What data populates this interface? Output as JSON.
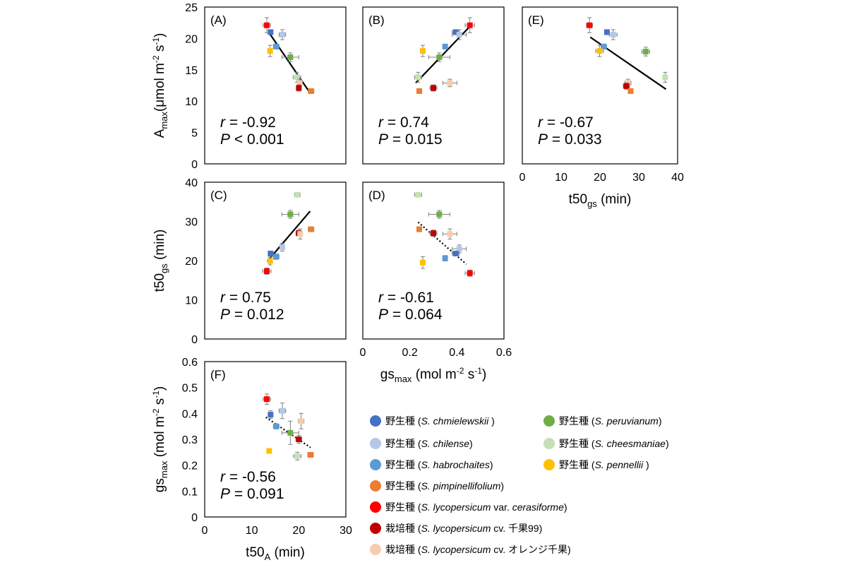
{
  "legend": {
    "entries": [
      {
        "key": "chm",
        "prefix": "野生種 (",
        "italic": "S. chmielewskii",
        "suffix": " )",
        "color": "#4472C4"
      },
      {
        "key": "chi",
        "prefix": "野生種 (",
        "italic": "S. chilense",
        "suffix": ")",
        "color": "#B4C7E7"
      },
      {
        "key": "hab",
        "prefix": "野生種 (",
        "italic": "S. habrochaites",
        "suffix": ")",
        "color": "#5B9BD5"
      },
      {
        "key": "pim",
        "prefix": "野生種 (",
        "italic": "S. pimpinellifolium",
        "suffix": ")",
        "color": "#ED7D31"
      },
      {
        "key": "cer",
        "prefix": "野生種 (",
        "italic": "S. lycopersicum",
        "suffix": " var. ",
        "italic2": "cerasiforme",
        "suffix2": ")",
        "color": "#FF0000"
      },
      {
        "key": "c99",
        "prefix": "栽培種 (",
        "italic": "S. lycopersicum",
        "suffix": " cv. 千果99)",
        "color": "#C00000"
      },
      {
        "key": "cor",
        "prefix": "栽培種 (",
        "italic": "S. lycopersicum",
        "suffix": " cv. オレンジ千果)",
        "color": "#F8CBAD"
      },
      {
        "key": "per",
        "prefix": "野生種 (",
        "italic": "S. peruvianum",
        "suffix": ")",
        "color": "#70AD47"
      },
      {
        "key": "che",
        "prefix": "野生種 (",
        "italic": "S. cheesmaniae",
        "suffix": ")",
        "color": "#C5E0B4"
      },
      {
        "key": "pen",
        "prefix": "野生種 (",
        "italic": "S. pennellii",
        "suffix": " )",
        "color": "#FFC000"
      }
    ]
  },
  "chart_data": [
    {
      "id": "A",
      "type": "scatter",
      "panel_label": "(A)",
      "ylabel": "A",
      "ylabel_sub": "max",
      "ylabel_unit": "(μmol m",
      "ylabel_sup1": "-2",
      "ylabel_mid": " s",
      "ylabel_sup2": "-1",
      "ylabel_end": ")",
      "xlim": [
        0,
        30
      ],
      "ylim": [
        0,
        25
      ],
      "yticks": [
        "0",
        "5",
        "10",
        "15",
        "20",
        "25"
      ],
      "r": "-0.92",
      "p_op": "<",
      "p": "0.001",
      "trend": {
        "style": "solid",
        "from": [
          13.6,
          21.0
        ],
        "to": [
          22.3,
          11.4
        ]
      },
      "points": [
        {
          "s": "cer",
          "x": 13.2,
          "y": 22.1,
          "xe": 0.8,
          "ye": 1.2
        },
        {
          "s": "chm",
          "x": 14.0,
          "y": 21.0,
          "xe": 0.4,
          "ye": 0.4
        },
        {
          "s": "chi",
          "x": 16.5,
          "y": 20.6,
          "xe": 0.7,
          "ye": 0.8
        },
        {
          "s": "hab",
          "x": 15.2,
          "y": 18.7,
          "xe": 0.6,
          "ye": 0.4
        },
        {
          "s": "pen",
          "x": 13.9,
          "y": 18.0,
          "xe": 0.3,
          "ye": 0.9
        },
        {
          "s": "per",
          "x": 18.2,
          "y": 17.0,
          "xe": 1.8,
          "ye": 0.7
        },
        {
          "s": "che",
          "x": 19.6,
          "y": 13.8,
          "xe": 0.8,
          "ye": 0.8
        },
        {
          "s": "cor",
          "x": 20.2,
          "y": 12.9,
          "xe": 0.5,
          "ye": 0.6
        },
        {
          "s": "c99",
          "x": 20.0,
          "y": 12.1,
          "xe": 0.5,
          "ye": 0.5
        },
        {
          "s": "pim",
          "x": 22.6,
          "y": 11.6,
          "xe": 0.6,
          "ye": 0.3
        }
      ]
    },
    {
      "id": "B",
      "type": "scatter",
      "panel_label": "(B)",
      "xlim": [
        0,
        0.6
      ],
      "ylim": [
        0,
        25
      ],
      "r": "0.74",
      "p_op": "=",
      "p": "0.015",
      "trend": {
        "style": "solid",
        "from": [
          0.225,
          12.9
        ],
        "to": [
          0.46,
          22.1
        ]
      },
      "points": [
        {
          "s": "cer",
          "x": 0.455,
          "y": 22.1,
          "xe": 0.02,
          "ye": 1.2
        },
        {
          "s": "chm",
          "x": 0.395,
          "y": 21.0,
          "xe": 0.015,
          "ye": 0.4
        },
        {
          "s": "chi",
          "x": 0.41,
          "y": 20.6,
          "xe": 0.03,
          "ye": 0.8
        },
        {
          "s": "hab",
          "x": 0.35,
          "y": 18.7,
          "xe": 0.01,
          "ye": 0.4
        },
        {
          "s": "pen",
          "x": 0.255,
          "y": 18.0,
          "xe": 0.005,
          "ye": 0.9
        },
        {
          "s": "per",
          "x": 0.325,
          "y": 17.0,
          "xe": 0.045,
          "ye": 0.7
        },
        {
          "s": "che",
          "x": 0.235,
          "y": 13.8,
          "xe": 0.015,
          "ye": 0.8
        },
        {
          "s": "cor",
          "x": 0.37,
          "y": 12.9,
          "xe": 0.03,
          "ye": 0.6
        },
        {
          "s": "c99",
          "x": 0.3,
          "y": 12.1,
          "xe": 0.015,
          "ye": 0.5
        },
        {
          "s": "pim",
          "x": 0.24,
          "y": 11.6,
          "xe": 0.005,
          "ye": 0.3
        }
      ]
    },
    {
      "id": "E",
      "type": "scatter",
      "panel_label": "(E)",
      "xlabel": "t50",
      "xlabel_sub": "gs",
      "xlabel_unit": " (min)",
      "xlim": [
        0,
        40
      ],
      "ylim": [
        0,
        25
      ],
      "xticks": [
        "0",
        "10",
        "20",
        "30",
        "40"
      ],
      "r": "-0.67",
      "p_op": "=",
      "p": "0.033",
      "trend": {
        "style": "solid",
        "from": [
          17.5,
          20.2
        ],
        "to": [
          37.0,
          11.9
        ]
      },
      "points": [
        {
          "s": "cer",
          "x": 17.3,
          "y": 22.1,
          "xe": 0.8,
          "ye": 1.2
        },
        {
          "s": "chm",
          "x": 21.8,
          "y": 21.0,
          "xe": 0.6,
          "ye": 0.4
        },
        {
          "s": "chi",
          "x": 23.4,
          "y": 20.6,
          "xe": 1.0,
          "ye": 0.8
        },
        {
          "s": "hab",
          "x": 21.0,
          "y": 18.7,
          "xe": 0.7,
          "ye": 0.4
        },
        {
          "s": "pen",
          "x": 19.9,
          "y": 18.0,
          "xe": 1.0,
          "ye": 0.9
        },
        {
          "s": "per",
          "x": 31.8,
          "y": 17.9,
          "xe": 1.0,
          "ye": 0.7
        },
        {
          "s": "che",
          "x": 36.8,
          "y": 13.8,
          "xe": 0.5,
          "ye": 0.8
        },
        {
          "s": "cor",
          "x": 27.2,
          "y": 12.9,
          "xe": 0.8,
          "ye": 0.6
        },
        {
          "s": "c99",
          "x": 26.8,
          "y": 12.4,
          "xe": 0.8,
          "ye": 0.5
        },
        {
          "s": "pim",
          "x": 27.9,
          "y": 11.6,
          "xe": 0.6,
          "ye": 0.3
        }
      ]
    },
    {
      "id": "C",
      "type": "scatter",
      "panel_label": "(C)",
      "ylabel": "t50",
      "ylabel_sub": "gs",
      "ylabel_unit": " (min)",
      "xlim": [
        0,
        30
      ],
      "ylim": [
        0,
        40
      ],
      "yticks": [
        "0",
        "10",
        "20",
        "30",
        "40"
      ],
      "r": "0.75",
      "p_op": "=",
      "p": "0.012",
      "trend": {
        "style": "solid",
        "from": [
          13.3,
          19.8
        ],
        "to": [
          22.4,
          32.6
        ]
      },
      "points": [
        {
          "s": "che",
          "x": 19.7,
          "y": 36.8,
          "xe": 0.6,
          "ye": 0.5
        },
        {
          "s": "per",
          "x": 18.2,
          "y": 31.8,
          "xe": 1.8,
          "ye": 1.0
        },
        {
          "s": "pim",
          "x": 22.6,
          "y": 28.0,
          "xe": 0.6,
          "ye": 0.6
        },
        {
          "s": "c99",
          "x": 20.0,
          "y": 27.0,
          "xe": 0.6,
          "ye": 0.8
        },
        {
          "s": "cor",
          "x": 20.3,
          "y": 26.8,
          "xe": 0.5,
          "ye": 1.3
        },
        {
          "s": "chi",
          "x": 16.5,
          "y": 23.4,
          "xe": 0.5,
          "ye": 1.0
        },
        {
          "s": "chm",
          "x": 14.0,
          "y": 21.8,
          "xe": 0.4,
          "ye": 0.6
        },
        {
          "s": "hab",
          "x": 15.2,
          "y": 21.0,
          "xe": 0.6,
          "ye": 0.7
        },
        {
          "s": "pen",
          "x": 13.9,
          "y": 19.9,
          "xe": 0.3,
          "ye": 1.0
        },
        {
          "s": "cer",
          "x": 13.2,
          "y": 17.3,
          "xe": 0.9,
          "ye": 0.8
        }
      ]
    },
    {
      "id": "D",
      "type": "scatter",
      "panel_label": "(D)",
      "xlabel": "gs",
      "xlabel_sub": "max",
      "xlabel_unit": " (mol m",
      "xlabel_sup1": "-2",
      "xlabel_mid": " s",
      "xlabel_sup2": "-1",
      "xlabel_end": ")",
      "xlim": [
        0,
        0.6
      ],
      "ylim": [
        0,
        40
      ],
      "xticks": [
        "0",
        "0.2",
        "0.4",
        "0.6"
      ],
      "r": "-0.61",
      "p_op": "=",
      "p": "0.064",
      "trend": {
        "style": "dotted",
        "from": [
          0.235,
          29.8
        ],
        "to": [
          0.44,
          19.1
        ]
      },
      "points": [
        {
          "s": "che",
          "x": 0.235,
          "y": 36.8,
          "xe": 0.015,
          "ye": 0.5
        },
        {
          "s": "per",
          "x": 0.325,
          "y": 31.8,
          "xe": 0.045,
          "ye": 1.0
        },
        {
          "s": "pim",
          "x": 0.24,
          "y": 28.0,
          "xe": 0.005,
          "ye": 0.6
        },
        {
          "s": "c99",
          "x": 0.3,
          "y": 27.0,
          "xe": 0.015,
          "ye": 0.8
        },
        {
          "s": "cor",
          "x": 0.37,
          "y": 26.8,
          "xe": 0.03,
          "ye": 1.3
        },
        {
          "s": "chi",
          "x": 0.41,
          "y": 23.0,
          "xe": 0.03,
          "ye": 1.0
        },
        {
          "s": "chm",
          "x": 0.395,
          "y": 21.8,
          "xe": 0.015,
          "ye": 0.6
        },
        {
          "s": "hab",
          "x": 0.35,
          "y": 20.6,
          "xe": 0.01,
          "ye": 0.7
        },
        {
          "s": "pen",
          "x": 0.255,
          "y": 19.5,
          "xe": 0.005,
          "ye": 1.5
        },
        {
          "s": "cer",
          "x": 0.455,
          "y": 16.8,
          "xe": 0.02,
          "ye": 0.8
        }
      ]
    },
    {
      "id": "F",
      "type": "scatter",
      "panel_label": "(F)",
      "ylabel": "gs",
      "ylabel_sub": "max",
      "ylabel_unit": " (mol m",
      "ylabel_sup1": "-2",
      "ylabel_mid": " s",
      "ylabel_sup2": "-1",
      "ylabel_end": ")",
      "xlabel": "t50",
      "xlabel_sub": "A",
      "xlabel_unit": " (min)",
      "xlim": [
        0,
        30
      ],
      "ylim": [
        0,
        0.6
      ],
      "xticks": [
        "0",
        "10",
        "20",
        "30"
      ],
      "yticks": [
        "0",
        "0.1",
        "0.2",
        "0.3",
        "0.4",
        "0.5",
        "0.6"
      ],
      "r": "-0.56",
      "p_op": "=",
      "p": "0.091",
      "trend": {
        "style": "dotted",
        "from": [
          13.0,
          0.385
        ],
        "to": [
          22.5,
          0.268
        ]
      },
      "points": [
        {
          "s": "cer",
          "x": 13.2,
          "y": 0.455,
          "xe": 0.8,
          "ye": 0.02
        },
        {
          "s": "chi",
          "x": 16.5,
          "y": 0.41,
          "xe": 0.7,
          "ye": 0.03
        },
        {
          "s": "chm",
          "x": 14.0,
          "y": 0.395,
          "xe": 0.4,
          "ye": 0.015
        },
        {
          "s": "cor",
          "x": 20.5,
          "y": 0.37,
          "xe": 0.6,
          "ye": 0.03
        },
        {
          "s": "hab",
          "x": 15.2,
          "y": 0.35,
          "xe": 0.6,
          "ye": 0.01
        },
        {
          "s": "per",
          "x": 18.2,
          "y": 0.325,
          "xe": 1.8,
          "ye": 0.045
        },
        {
          "s": "c99",
          "x": 20.0,
          "y": 0.3,
          "xe": 0.6,
          "ye": 0.015
        },
        {
          "s": "pen",
          "x": 13.7,
          "y": 0.255,
          "xe": 0.3,
          "ye": 0.005
        },
        {
          "s": "pim",
          "x": 22.5,
          "y": 0.24,
          "xe": 0.6,
          "ye": 0.005
        },
        {
          "s": "che",
          "x": 19.7,
          "y": 0.235,
          "xe": 0.8,
          "ye": 0.015
        }
      ]
    }
  ]
}
